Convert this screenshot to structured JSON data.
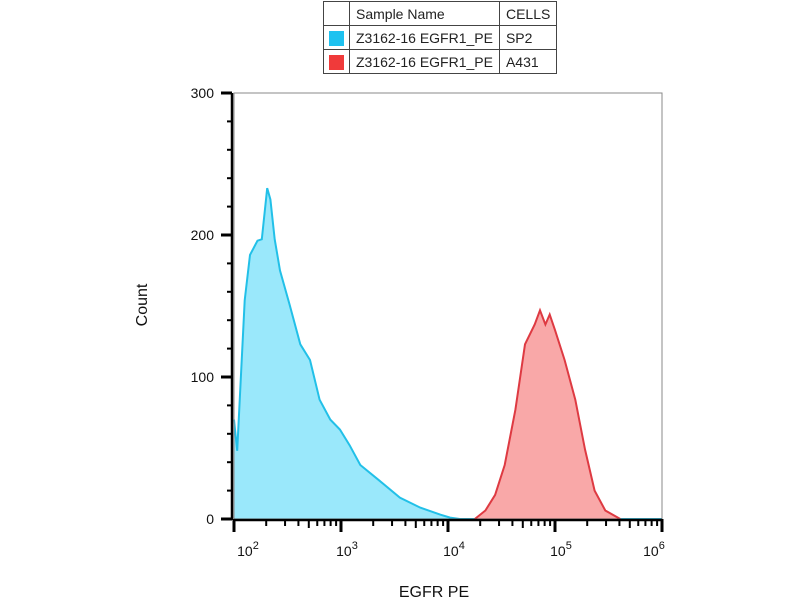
{
  "legend": {
    "headers": [
      "",
      "Sample Name",
      "CELLS"
    ],
    "rows": [
      {
        "sample": "Z3162-16 EGFR1_PE",
        "cells": "SP2",
        "color": "#1ec2f0"
      },
      {
        "sample": "Z3162-16 EGFR1_PE",
        "cells": "A431",
        "color": "#f03a3a"
      }
    ]
  },
  "chart_data": {
    "type": "area",
    "title": "",
    "xlabel": "EGFR PE",
    "ylabel": "Count",
    "xscale": "log10",
    "xlim_log10": [
      2,
      6
    ],
    "ylim": [
      0,
      300
    ],
    "x_tick_labels": [
      {
        "base": "10",
        "exp": "2"
      },
      {
        "base": "10",
        "exp": "3"
      },
      {
        "base": "10",
        "exp": "4"
      },
      {
        "base": "10",
        "exp": "5"
      },
      {
        "base": "10",
        "exp": "6"
      }
    ],
    "y_tick_labels": [
      "0",
      "100",
      "200",
      "300"
    ],
    "y_ticks": [
      0,
      100,
      200,
      300
    ],
    "series": [
      {
        "name": "SP2",
        "fill": "#9ae8fb",
        "stroke": "#22c0e8",
        "x_log10": [
          2.0,
          2.03,
          2.1,
          2.15,
          2.22,
          2.26,
          2.31,
          2.34,
          2.38,
          2.43,
          2.52,
          2.62,
          2.71,
          2.8,
          2.9,
          2.99,
          3.08,
          3.18,
          3.36,
          3.55,
          3.74,
          3.93,
          4.02,
          4.11,
          6.0
        ],
        "count": [
          70,
          48,
          154,
          186,
          196,
          197,
          233,
          225,
          197,
          175,
          151,
          123,
          112,
          84,
          70,
          63,
          52,
          38,
          27,
          15,
          8,
          3,
          1,
          0,
          0
        ]
      },
      {
        "name": "A431",
        "fill": "#f9a8a8",
        "stroke": "#de3a42",
        "x_log10": [
          4.25,
          4.35,
          4.44,
          4.53,
          4.63,
          4.72,
          4.81,
          4.86,
          4.91,
          4.95,
          5.0,
          5.09,
          5.19,
          5.28,
          5.37,
          5.47,
          5.61
        ],
        "count": [
          0,
          6,
          17,
          38,
          77,
          123,
          137,
          147,
          137,
          144,
          133,
          112,
          84,
          49,
          20,
          6,
          0
        ]
      }
    ]
  }
}
